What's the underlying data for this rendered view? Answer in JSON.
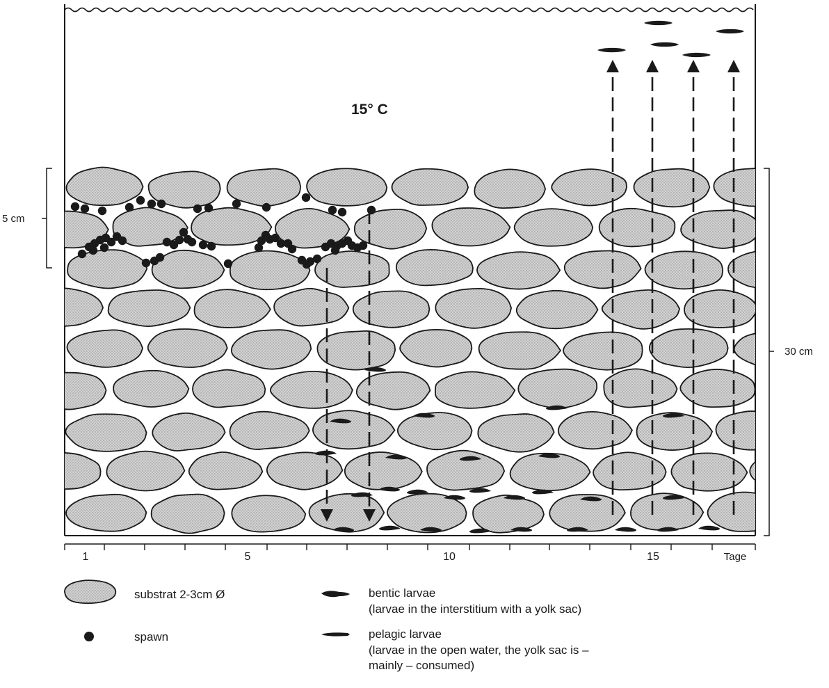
{
  "temperature": "15° C",
  "scale_left": "5 cm",
  "scale_right": "30 cm",
  "axis": {
    "ticks": [
      "1",
      "5",
      "10",
      "15"
    ],
    "unit": "Tage"
  },
  "legend": {
    "substrate": "substrat 2-3cm Ø",
    "spawn": "spawn",
    "bentic_title": "bentic larvae",
    "bentic_desc": "(larvae in the interstitium with a yolk sac)",
    "pelagic_title": "pelagic larvae",
    "pelagic_desc_1": "(larvae in the open water, the  yolk sac is –",
    "pelagic_desc_2": "mainly – consumed)"
  },
  "colors": {
    "stone_fill": "#cfcfcf",
    "ink": "#1a1a1a"
  }
}
